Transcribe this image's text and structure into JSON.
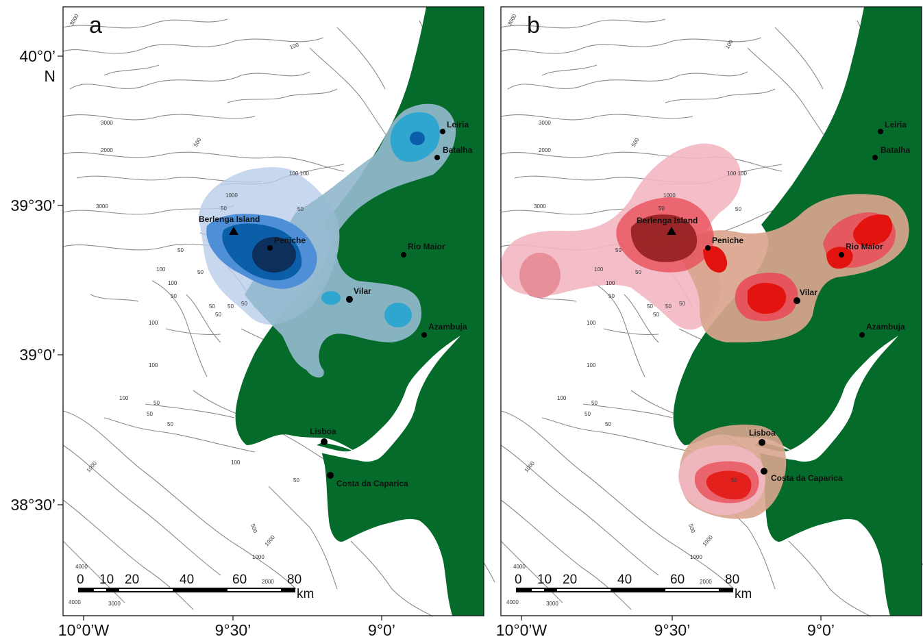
{
  "panels": [
    {
      "letter": "a",
      "scheme": "blue"
    },
    {
      "letter": "b",
      "scheme": "red"
    }
  ],
  "axis": {
    "lat_labels": [
      "40°0’",
      "39°30’",
      "39°0’",
      "38°30’"
    ],
    "north_label": "N",
    "lon_labels": [
      "10°0’W",
      "9°30’",
      "9°0’"
    ],
    "lon_labels_b": [
      "10°0’W",
      "9°30’",
      "9°0’"
    ]
  },
  "places": {
    "leiria": "Leiria",
    "batalha": "Batalha",
    "berlenga": "Berlenga Island",
    "peniche": "Peniche",
    "rio_maior": "Rio Maior",
    "vilar": "Vilar",
    "azambuja": "Azambuja",
    "lisboa": "Lisboa",
    "costa": "Costa da Caparica"
  },
  "depths": {
    "d50": "50",
    "d100": "100",
    "d100pair": "100 100",
    "d500": "500",
    "d1000": "1000",
    "d2000": "2000",
    "d3000": "3000",
    "d4000": "4000"
  },
  "scale_bar": {
    "ticks": [
      "0",
      "10",
      "20",
      "40",
      "60",
      "80"
    ],
    "unit": "km"
  },
  "colors": {
    "land": "#046b2b",
    "sea": "#ffffff",
    "bathymetry": "#8a8a8a",
    "blue_light": "#b9cdea",
    "blue_mid": "#2fa6cf",
    "blue_dark": "#0b5fa8",
    "blue_darkest": "#0c2f5c",
    "blue_grey": "#93b8cd",
    "red_light": "#f2b7c2",
    "red_tan": "#d9a58e",
    "red_mid": "#e8505a",
    "red_bright": "#e3140f",
    "red_dark": "#8e1a1a"
  }
}
